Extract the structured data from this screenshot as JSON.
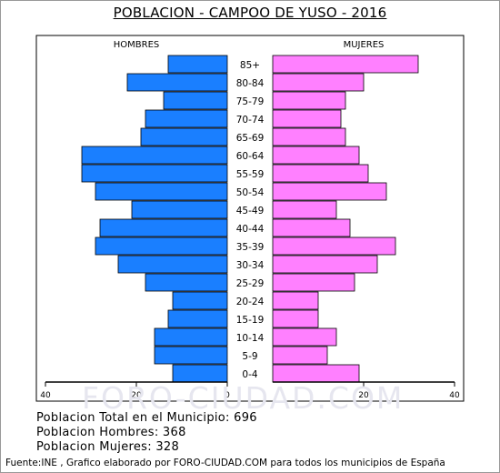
{
  "title": "POBLACION - CAMPOO DE YUSO - 2016",
  "watermark": "FORO-CIUDAD.COM",
  "stats": {
    "total": "Poblacion Total en el Municipio: 696",
    "hombres": "Poblacion Hombres: 368",
    "mujeres": "Poblacion Mujeres: 328"
  },
  "footer": "Fuente:INE , Grafico elaborado por FORO-CIUDAD.COM para todos los municipios de España",
  "colors": {
    "hombres": "#1a7fff",
    "mujeres": "#ff80ff",
    "border": "#000000"
  },
  "chart_data": {
    "type": "bar",
    "subtype": "population-pyramid",
    "title": "POBLACION - CAMPOO DE YUSO - 2016",
    "left_label": "HOMBRES",
    "right_label": "MUJERES",
    "xlim": [
      0,
      40
    ],
    "x_ticks": [
      "40",
      "20",
      "0",
      "20",
      "40"
    ],
    "categories": [
      "85+",
      "80-84",
      "75-79",
      "70-74",
      "65-69",
      "60-64",
      "55-59",
      "50-54",
      "45-49",
      "40-44",
      "35-39",
      "30-34",
      "25-29",
      "20-24",
      "15-19",
      "10-14",
      "5-9",
      "0-4"
    ],
    "series": [
      {
        "name": "HOMBRES",
        "values": [
          13,
          22,
          14,
          18,
          19,
          32,
          32,
          29,
          21,
          28,
          29,
          24,
          18,
          12,
          13,
          16,
          16,
          12
        ]
      },
      {
        "name": "MUJERES",
        "values": [
          32,
          20,
          16,
          15,
          16,
          19,
          21,
          25,
          14,
          17,
          27,
          23,
          18,
          10,
          10,
          14,
          12,
          19
        ]
      }
    ],
    "grid": false
  }
}
